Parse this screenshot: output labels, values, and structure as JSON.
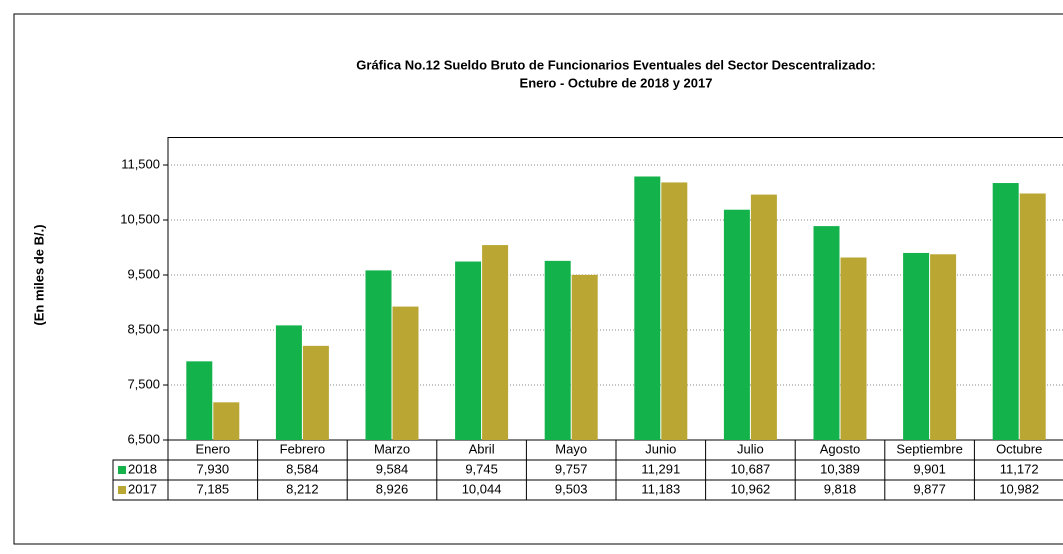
{
  "chart_data": {
    "type": "bar",
    "title": "Gráfica No.12 Sueldo Bruto de Funcionarios Eventuales del Sector Descentralizado:",
    "subtitle": "Enero - Octubre de 2018 y 2017",
    "y_label": "(En miles de B/.)",
    "categories": [
      "Enero",
      "Febrero",
      "Marzo",
      "Abril",
      "Mayo",
      "Junio",
      "Julio",
      "Agosto",
      "Septiembre",
      "Octubre"
    ],
    "series": [
      {
        "name": "2018",
        "color": "#13b24b",
        "values": [
          7930,
          8584,
          9584,
          9745,
          9757,
          11291,
          10687,
          10389,
          9901,
          11172
        ],
        "value_labels": [
          "7,930",
          "8,584",
          "9,584",
          "9,745",
          "9,757",
          "11,291",
          "10,687",
          "10,389",
          "9,901",
          "11,172"
        ]
      },
      {
        "name": "2017",
        "color": "#b9a633",
        "values": [
          7185,
          8212,
          8926,
          10044,
          9503,
          11183,
          10962,
          9818,
          9877,
          10982
        ],
        "value_labels": [
          "7,185",
          "8,212",
          "8,926",
          "10,044",
          "9,503",
          "11,183",
          "10,962",
          "9,818",
          "9,877",
          "10,982"
        ]
      }
    ],
    "ylim": [
      6500,
      12000
    ],
    "yticks": [
      {
        "value": 6500,
        "label": "6,500"
      },
      {
        "value": 7500,
        "label": "7,500"
      },
      {
        "value": 8500,
        "label": "8,500"
      },
      {
        "value": 9500,
        "label": "9,500"
      },
      {
        "value": 10500,
        "label": "10,500"
      },
      {
        "value": 11500,
        "label": "11,500"
      }
    ],
    "grid": true
  }
}
